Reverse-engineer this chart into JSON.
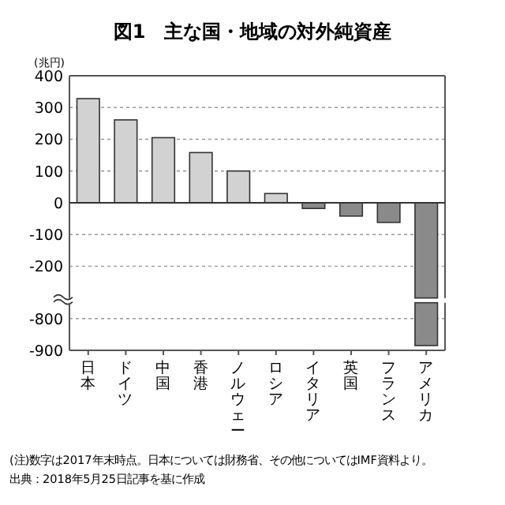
{
  "chart_data": [
    {
      "type": "bar",
      "title": "図1　主な国・地域の対外純資産",
      "ylabel": "(兆円)",
      "categories": [
        "日本",
        "ドイツ",
        "中国",
        "香港",
        "ノルウェー",
        "ロシア",
        "イタリア",
        "英国",
        "フランス",
        "アメリカ"
      ],
      "values": [
        328,
        261,
        205,
        158,
        100,
        29,
        -18,
        -42,
        -62,
        -300
      ],
      "colors": [
        "#d2d2d2",
        "#d2d2d2",
        "#d2d2d2",
        "#d2d2d2",
        "#d2d2d2",
        "#d2d2d2",
        "#8a8a8a",
        "#8a8a8a",
        "#8a8a8a",
        "#8a8a8a"
      ],
      "ylim": [
        -300,
        400
      ],
      "yticks": [
        400,
        300,
        200,
        100,
        0,
        -100,
        -200
      ],
      "grid": "y",
      "tick_labels": "y"
    },
    {
      "type": "bar",
      "categories": [
        "日本",
        "ドイツ",
        "中国",
        "香港",
        "ノルウェー",
        "ロシア",
        "イタリア",
        "英国",
        "フランス",
        "アメリカ"
      ],
      "values": [
        null,
        null,
        null,
        null,
        null,
        null,
        null,
        null,
        null,
        -135
      ],
      "base": [
        null,
        null,
        null,
        null,
        null,
        null,
        null,
        null,
        null,
        -750
      ],
      "colors": [
        "#d2d2d2",
        "#d2d2d2",
        "#d2d2d2",
        "#d2d2d2",
        "#d2d2d2",
        "#d2d2d2",
        "#8a8a8a",
        "#8a8a8a",
        "#8a8a8a",
        "#8a8a8a"
      ],
      "ylim": [
        -900,
        -750
      ],
      "yticks": [
        -800,
        -900
      ],
      "grid": "y",
      "annotations": [
        "(注)数字は2017年末時点。日本については財務省、その他についてはIMF資料より。",
        "出典：2018年5月25日記事を基に作成"
      ]
    }
  ]
}
